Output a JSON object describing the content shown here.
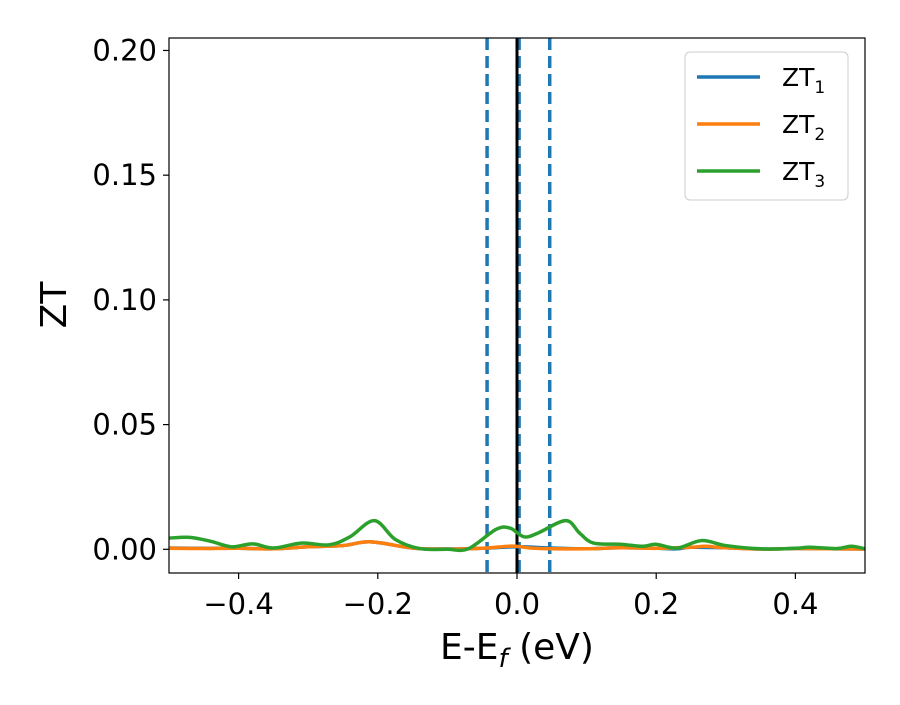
{
  "chart_data": {
    "type": "line",
    "title": "",
    "xlabel": "E-E",
    "xlabel_subscript": "f",
    "xlabel_unit": " (eV)",
    "ylabel": "ZT",
    "xlim": [
      -0.5,
      0.5
    ],
    "ylim": [
      -0.0095,
      0.205
    ],
    "xticks": [
      {
        "value": -0.4,
        "label": "−0.4"
      },
      {
        "value": -0.2,
        "label": "−0.2"
      },
      {
        "value": 0.0,
        "label": "0.0"
      },
      {
        "value": 0.2,
        "label": "0.2"
      },
      {
        "value": 0.4,
        "label": "0.4"
      }
    ],
    "yticks": [
      {
        "value": 0.0,
        "label": "0.00"
      },
      {
        "value": 0.05,
        "label": "0.05"
      },
      {
        "value": 0.1,
        "label": "0.10"
      },
      {
        "value": 0.15,
        "label": "0.15"
      },
      {
        "value": 0.2,
        "label": "0.20"
      }
    ],
    "grid": false,
    "legend_position": "top-right",
    "vertical_lines": [
      {
        "x": -0.043,
        "style": "dashed",
        "color": "#1f77b4"
      },
      {
        "x": 0.003,
        "style": "dashed",
        "color": "#1f77b4"
      },
      {
        "x": 0.047,
        "style": "dashed",
        "color": "#1f77b4"
      },
      {
        "x": 0.0,
        "style": "solid",
        "color": "#000000"
      }
    ],
    "series": [
      {
        "name": "ZT",
        "subscript": "1",
        "color": "#1f77b4",
        "points": [
          [
            -0.5,
            0.0005
          ],
          [
            -0.45,
            0.0004
          ],
          [
            -0.4,
            0.0004
          ],
          [
            -0.35,
            0.0002
          ],
          [
            -0.3,
            0.001
          ],
          [
            -0.25,
            0.0015
          ],
          [
            -0.21,
            0.003
          ],
          [
            -0.15,
            0.0005
          ],
          [
            -0.1,
            0.0001
          ],
          [
            -0.05,
            0.0004
          ],
          [
            0.0,
            0.001
          ],
          [
            0.05,
            0.0005
          ],
          [
            0.1,
            0.0002
          ],
          [
            0.15,
            0.0006
          ],
          [
            0.2,
            0.0004
          ],
          [
            0.23,
            0.0002
          ],
          [
            0.25,
            0.0008
          ],
          [
            0.3,
            0.0006
          ],
          [
            0.35,
            0.0001
          ],
          [
            0.4,
            0.0003
          ],
          [
            0.45,
            0.0002
          ],
          [
            0.5,
            0.0001
          ]
        ]
      },
      {
        "name": "ZT",
        "subscript": "2",
        "color": "#ff7f0e",
        "points": [
          [
            -0.5,
            0.0004
          ],
          [
            -0.45,
            0.0003
          ],
          [
            -0.4,
            0.0004
          ],
          [
            -0.35,
            0.0002
          ],
          [
            -0.3,
            0.001
          ],
          [
            -0.25,
            0.0015
          ],
          [
            -0.21,
            0.003
          ],
          [
            -0.15,
            0.0005
          ],
          [
            -0.1,
            0.0001
          ],
          [
            -0.05,
            0.0004
          ],
          [
            -0.015,
            0.0012
          ],
          [
            0.0,
            0.0012
          ],
          [
            0.02,
            0.0005
          ],
          [
            0.05,
            0.0002
          ],
          [
            0.1,
            0.0002
          ],
          [
            0.15,
            0.0006
          ],
          [
            0.2,
            0.0004
          ],
          [
            0.25,
            0.0008
          ],
          [
            0.27,
            0.0012
          ],
          [
            0.3,
            0.0006
          ],
          [
            0.35,
            0.0001
          ],
          [
            0.4,
            0.0003
          ],
          [
            0.45,
            0.0002
          ],
          [
            0.5,
            0.0001
          ]
        ]
      },
      {
        "name": "ZT",
        "subscript": "3",
        "color": "#2ca02c",
        "points": [
          [
            -0.5,
            0.0045
          ],
          [
            -0.47,
            0.0048
          ],
          [
            -0.44,
            0.0032
          ],
          [
            -0.41,
            0.001
          ],
          [
            -0.38,
            0.0022
          ],
          [
            -0.35,
            0.0005
          ],
          [
            -0.31,
            0.0025
          ],
          [
            -0.27,
            0.0018
          ],
          [
            -0.24,
            0.005
          ],
          [
            -0.205,
            0.0115
          ],
          [
            -0.175,
            0.004
          ],
          [
            -0.14,
            0.0003
          ],
          [
            -0.1,
            0.0
          ],
          [
            -0.07,
            0.0002
          ],
          [
            -0.03,
            0.008
          ],
          [
            -0.01,
            0.0085
          ],
          [
            0.01,
            0.005
          ],
          [
            0.03,
            0.0065
          ],
          [
            0.07,
            0.0115
          ],
          [
            0.09,
            0.0065
          ],
          [
            0.11,
            0.0025
          ],
          [
            0.15,
            0.002
          ],
          [
            0.18,
            0.0012
          ],
          [
            0.2,
            0.002
          ],
          [
            0.23,
            0.0005
          ],
          [
            0.265,
            0.0035
          ],
          [
            0.3,
            0.0015
          ],
          [
            0.35,
            0.0002
          ],
          [
            0.4,
            0.0004
          ],
          [
            0.42,
            0.0008
          ],
          [
            0.46,
            0.0003
          ],
          [
            0.48,
            0.0012
          ],
          [
            0.5,
            0.0002
          ]
        ]
      }
    ]
  }
}
